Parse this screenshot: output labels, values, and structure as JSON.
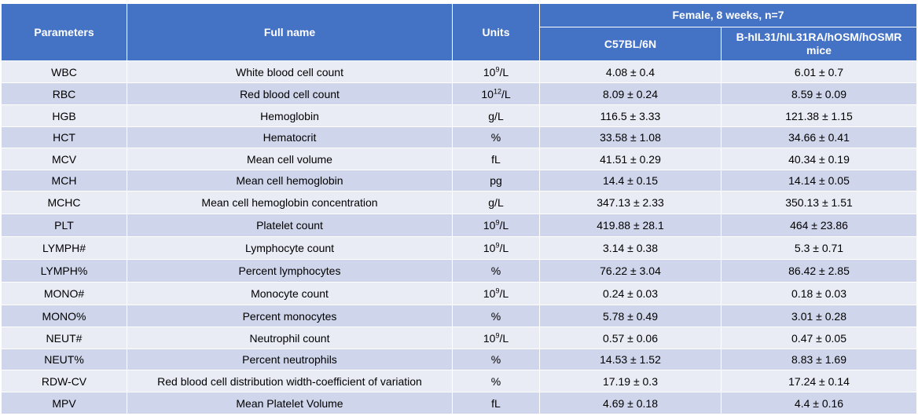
{
  "table": {
    "headers": {
      "parameters": "Parameters",
      "full_name": "Full name",
      "units": "Units",
      "group": "Female, 8 weeks, n=7",
      "col1": "C57BL/6N",
      "col2": "B-hIL31/hIL31RA/hOSM/hOSMR mice"
    },
    "rows": [
      {
        "param": "WBC",
        "name": "White blood cell count",
        "unit_base": "10",
        "unit_exp": "9",
        "unit_suffix": "/L",
        "c57": "4.08 ± 0.4",
        "mice": "6.01 ± 0.7"
      },
      {
        "param": "RBC",
        "name": "Red blood cell count",
        "unit_base": "10",
        "unit_exp": "12",
        "unit_suffix": "/L",
        "c57": "8.09 ± 0.24",
        "mice": "8.59 ± 0.09"
      },
      {
        "param": "HGB",
        "name": "Hemoglobin",
        "unit": "g/L",
        "c57": "116.5 ± 3.33",
        "mice": "121.38 ± 1.15"
      },
      {
        "param": "HCT",
        "name": "Hematocrit",
        "unit": "%",
        "c57": "33.58 ± 1.08",
        "mice": "34.66 ± 0.41"
      },
      {
        "param": "MCV",
        "name": "Mean cell volume",
        "unit": "fL",
        "c57": "41.51 ± 0.29",
        "mice": "40.34 ± 0.19"
      },
      {
        "param": "MCH",
        "name": "Mean cell hemoglobin",
        "unit": "pg",
        "c57": "14.4 ± 0.15",
        "mice": "14.14 ± 0.05"
      },
      {
        "param": "MCHC",
        "name": "Mean cell hemoglobin concentration",
        "unit": "g/L",
        "c57": "347.13 ± 2.33",
        "mice": "350.13 ± 1.51"
      },
      {
        "param": "PLT",
        "name": "Platelet count",
        "unit_base": "10",
        "unit_exp": "9",
        "unit_suffix": "/L",
        "c57": "419.88 ± 28.1",
        "mice": "464 ± 23.86"
      },
      {
        "param": "LYMPH#",
        "name": "Lymphocyte count",
        "unit_base": "10",
        "unit_exp": "9",
        "unit_suffix": "/L",
        "c57": "3.14 ± 0.38",
        "mice": "5.3 ± 0.71"
      },
      {
        "param": "LYMPH%",
        "name": "Percent lymphocytes",
        "unit": "%",
        "c57": "76.22 ± 3.04",
        "mice": "86.42 ± 2.85"
      },
      {
        "param": "MONO#",
        "name": "Monocyte count",
        "unit_base": "10",
        "unit_exp": "9",
        "unit_suffix": "/L",
        "c57": "0.24 ± 0.03",
        "mice": "0.18 ± 0.03"
      },
      {
        "param": "MONO%",
        "name": "Percent monocytes",
        "unit": "%",
        "c57": "5.78 ± 0.49",
        "mice": "3.01 ± 0.28"
      },
      {
        "param": "NEUT#",
        "name": "Neutrophil count",
        "unit_base": "10",
        "unit_exp": "9",
        "unit_suffix": "/L",
        "c57": "0.57 ± 0.06",
        "mice": "0.47 ± 0.05"
      },
      {
        "param": "NEUT%",
        "name": "Percent neutrophils",
        "unit": "%",
        "c57": "14.53 ± 1.52",
        "mice": "8.83 ± 1.69"
      },
      {
        "param": "RDW-CV",
        "name": "Red blood cell distribution width-coefficient of variation",
        "unit": "%",
        "c57": "17.19 ± 0.3",
        "mice": "17.24 ± 0.14"
      },
      {
        "param": "MPV",
        "name": "Mean Platelet Volume",
        "unit": "fL",
        "c57": "4.69 ± 0.18",
        "mice": "4.4 ± 0.16"
      }
    ]
  },
  "colors": {
    "header_bg": "#4472c4",
    "row_light": "#e9ebf5",
    "row_dark": "#cfd5ea"
  }
}
